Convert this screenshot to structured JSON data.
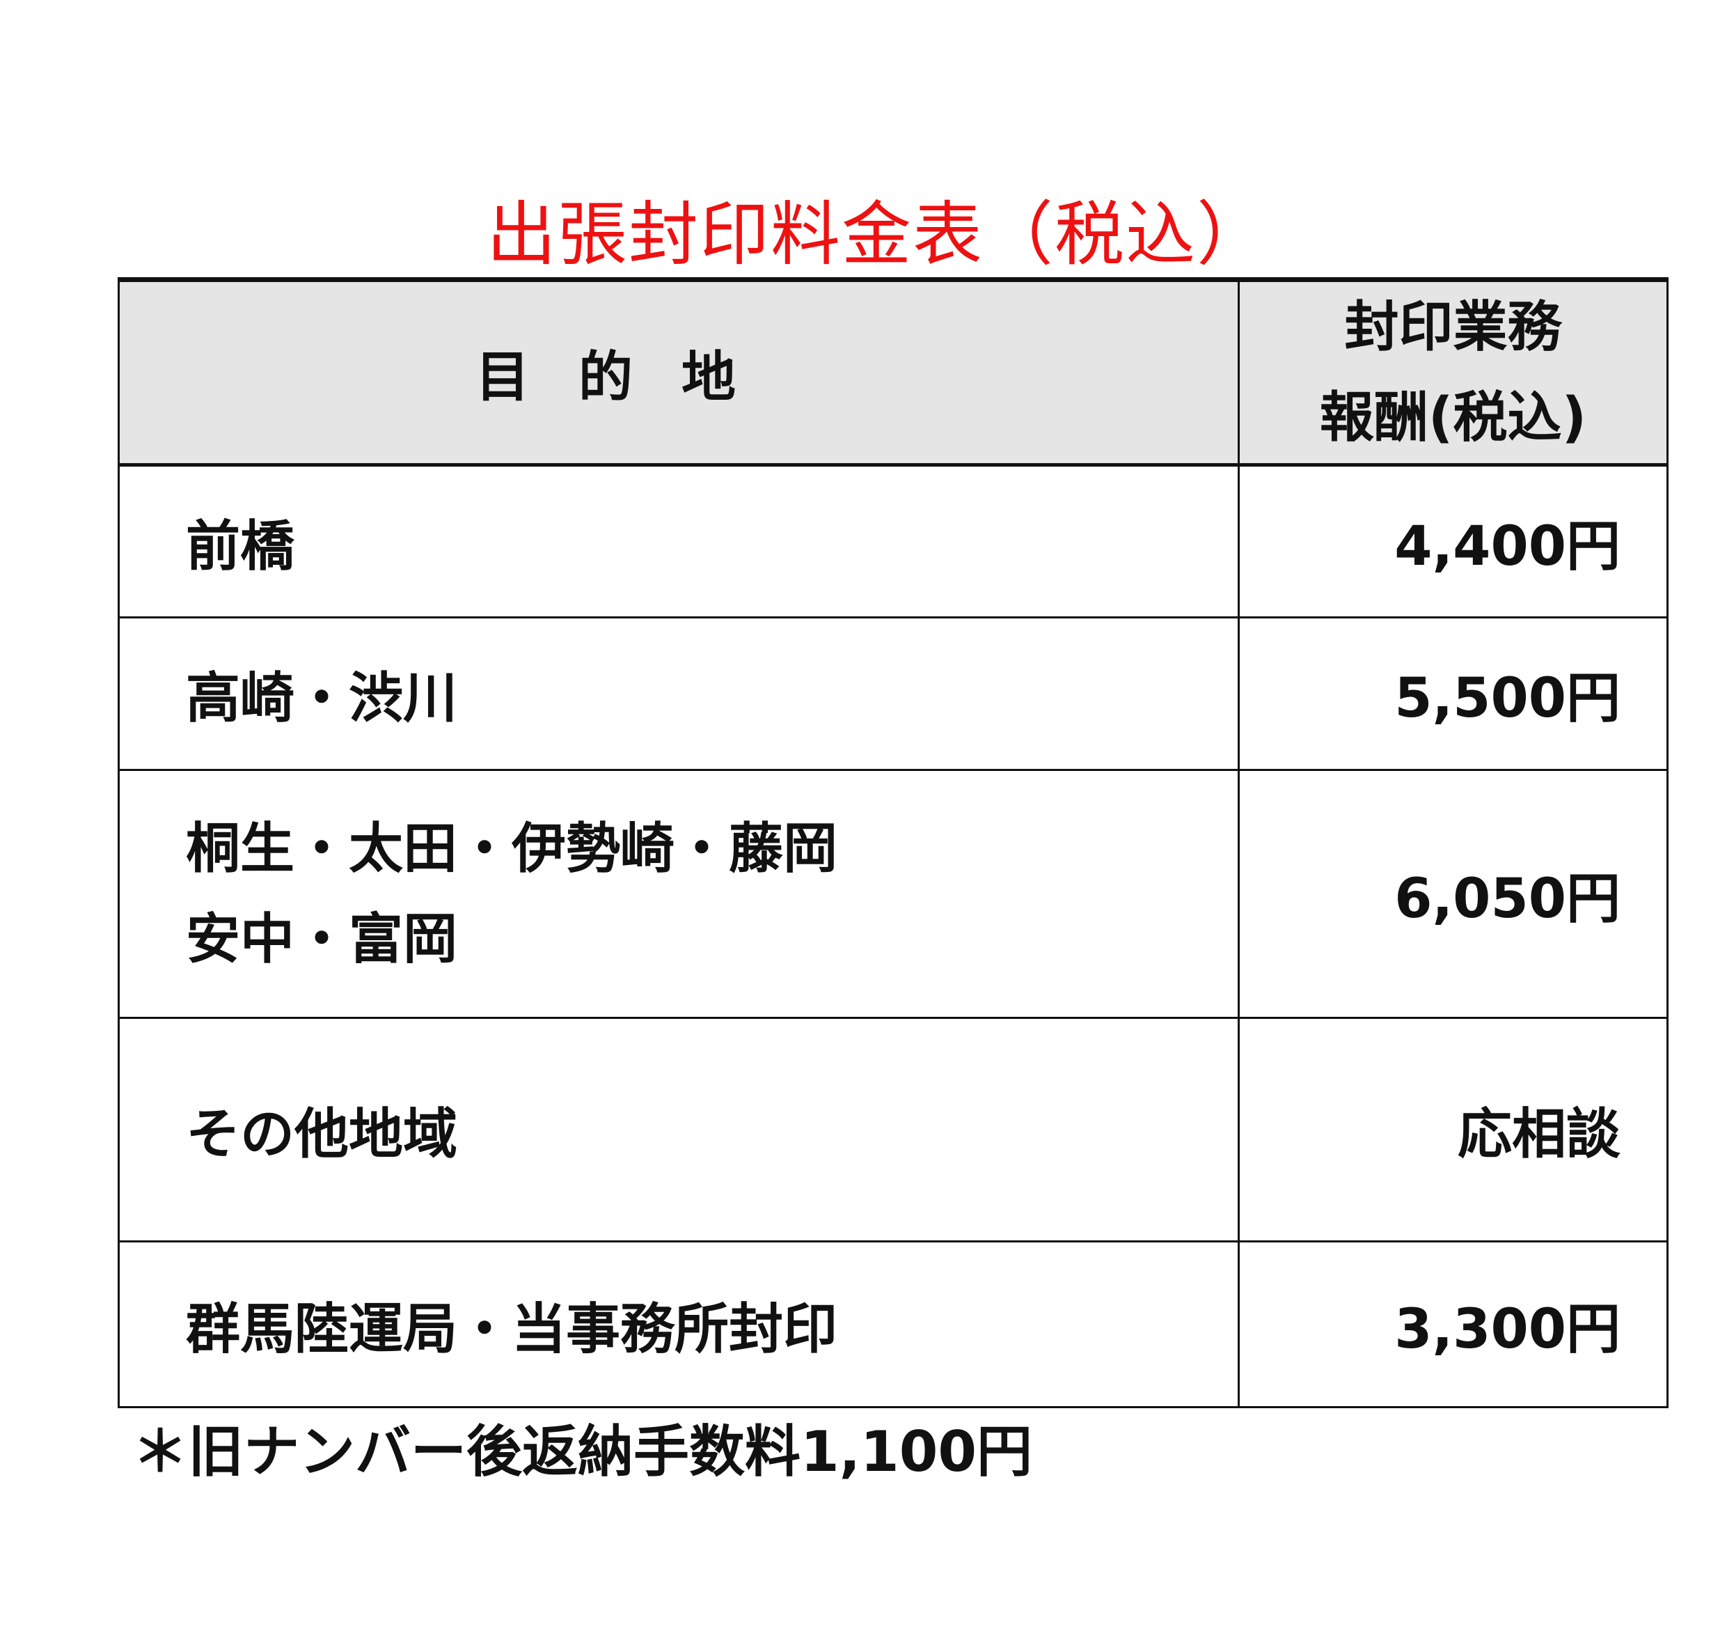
{
  "title": "出張封印料金表（税込）",
  "title_color": "#ee1111",
  "header": {
    "destination": "目的地",
    "fee_line1": "封印業務",
    "fee_line2": "報酬(税込)"
  },
  "rows": [
    {
      "destination": [
        "前橋"
      ],
      "fee": "4,400円"
    },
    {
      "destination": [
        "高崎・渋川"
      ],
      "fee": "5,500円"
    },
    {
      "destination": [
        "桐生・太田・伊勢崎・藤岡",
        "安中・富岡"
      ],
      "fee": "6,050円"
    },
    {
      "destination": [
        "その他地域"
      ],
      "fee": "応相談"
    },
    {
      "destination": [
        "群馬陸運局・当事務所封印"
      ],
      "fee": "3,300円"
    }
  ],
  "footnote": "＊旧ナンバー後返納手数料1,100円"
}
